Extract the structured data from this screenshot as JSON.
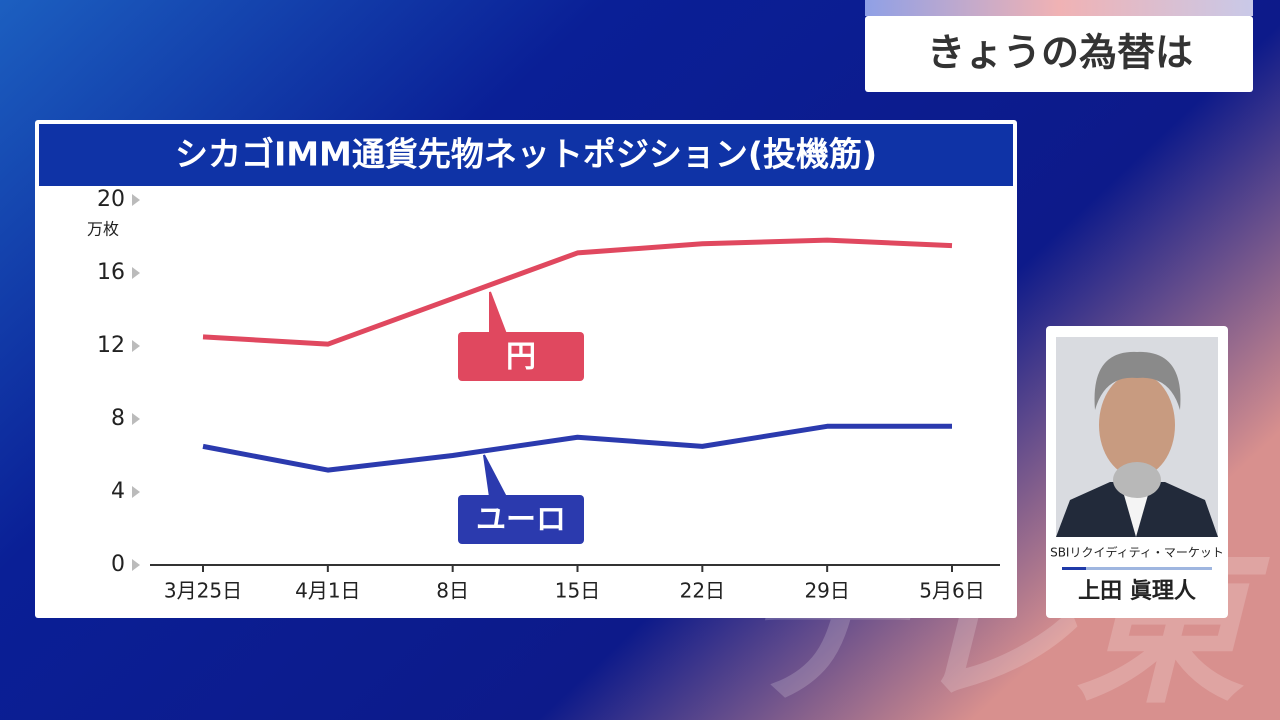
{
  "header": {
    "title": "きょうの為替は"
  },
  "chart_data": {
    "type": "line",
    "title": "シカゴIMM通貨先物ネットポジション(投機筋)",
    "y_label": "万枚",
    "categories": [
      "3月25日",
      "4月1日",
      "8日",
      "15日",
      "22日",
      "29日",
      "5月6日"
    ],
    "series": [
      {
        "name": "円",
        "color": "#e0485f",
        "values": [
          12.5,
          12.1,
          14.6,
          17.1,
          17.6,
          17.8,
          17.5
        ]
      },
      {
        "name": "ユーロ",
        "color": "#2b3aae",
        "values": [
          6.5,
          5.2,
          6.0,
          7.0,
          6.5,
          7.6,
          7.6
        ]
      }
    ],
    "ylim": [
      0,
      20
    ],
    "yticks": [
      0,
      4,
      8,
      12,
      16,
      20
    ],
    "grid": false
  },
  "presenter": {
    "company": "SBIリクイディティ・マーケット",
    "name": "上田 眞理人"
  },
  "watermark": "テレ東"
}
